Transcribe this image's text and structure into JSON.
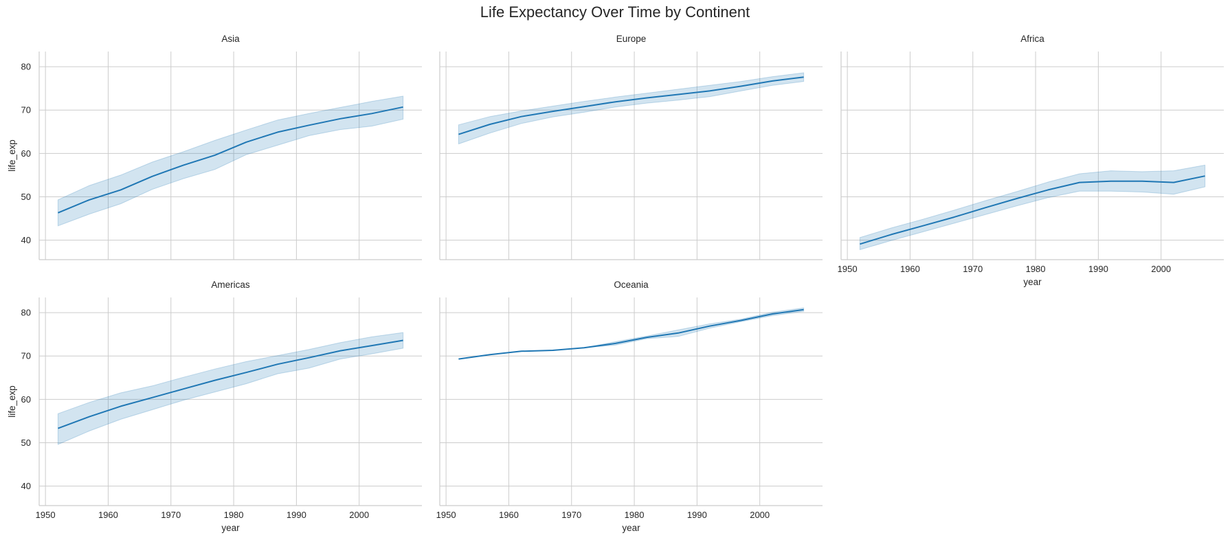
{
  "chart_data": {
    "type": "line",
    "title": "Life Expectancy Over Time by Continent",
    "x_label": "year",
    "y_label": "life_exp",
    "xlim": [
      1949,
      2010
    ],
    "ylim": [
      35.5,
      83.5
    ],
    "x_ticks": [
      1950,
      1960,
      1970,
      1980,
      1990,
      2000
    ],
    "y_ticks": [
      40,
      50,
      60,
      70,
      80
    ],
    "grid": true,
    "line_color": "#1f77b4",
    "x": [
      1952,
      1957,
      1962,
      1967,
      1972,
      1977,
      1982,
      1987,
      1992,
      1997,
      2002,
      2007
    ],
    "panels": [
      {
        "title": "Asia",
        "mean": [
          46.3,
          49.3,
          51.6,
          54.7,
          57.3,
          59.6,
          62.6,
          64.9,
          66.5,
          68.0,
          69.2,
          70.7
        ],
        "lower": [
          43.3,
          46.0,
          48.4,
          51.7,
          54.2,
          56.3,
          59.7,
          61.9,
          64.1,
          65.5,
          66.3,
          67.9
        ],
        "upper": [
          49.3,
          52.6,
          55.0,
          58.0,
          60.4,
          63.0,
          65.4,
          67.7,
          69.2,
          70.6,
          72.0,
          73.2
        ]
      },
      {
        "title": "Europe",
        "mean": [
          64.4,
          66.7,
          68.5,
          69.7,
          70.8,
          71.9,
          72.8,
          73.6,
          74.4,
          75.5,
          76.7,
          77.6
        ],
        "lower": [
          62.2,
          64.7,
          66.9,
          68.4,
          69.5,
          70.7,
          71.6,
          72.3,
          73.1,
          74.4,
          75.7,
          76.6
        ],
        "upper": [
          66.6,
          68.5,
          69.8,
          70.9,
          72.0,
          73.0,
          73.9,
          74.8,
          75.7,
          76.6,
          77.7,
          78.6
        ]
      },
      {
        "title": "Africa",
        "mean": [
          39.1,
          41.3,
          43.3,
          45.3,
          47.5,
          49.6,
          51.6,
          53.3,
          53.6,
          53.6,
          53.3,
          54.8
        ],
        "lower": [
          37.8,
          39.9,
          41.9,
          43.9,
          45.9,
          47.9,
          49.8,
          51.3,
          51.3,
          51.1,
          50.6,
          52.3
        ],
        "upper": [
          40.6,
          42.8,
          44.8,
          46.9,
          49.1,
          51.2,
          53.4,
          55.3,
          56.0,
          55.8,
          56.0,
          57.3
        ]
      },
      {
        "title": "Americas",
        "mean": [
          53.3,
          56.0,
          58.4,
          60.4,
          62.4,
          64.4,
          66.2,
          68.1,
          69.6,
          71.2,
          72.4,
          73.6
        ],
        "lower": [
          49.6,
          52.7,
          55.4,
          57.6,
          59.8,
          61.7,
          63.6,
          65.9,
          67.2,
          69.3,
          70.5,
          71.8
        ],
        "upper": [
          56.7,
          59.3,
          61.5,
          63.1,
          65.1,
          67.0,
          68.7,
          70.1,
          71.5,
          73.1,
          74.4,
          75.4
        ]
      },
      {
        "title": "Oceania",
        "mean": [
          69.3,
          70.3,
          71.1,
          71.3,
          71.9,
          72.9,
          74.3,
          75.3,
          76.9,
          78.2,
          79.7,
          80.7
        ],
        "lower": [
          69.3,
          70.3,
          71.1,
          71.3,
          71.9,
          72.5,
          74.0,
          74.5,
          76.4,
          77.9,
          79.3,
          80.3
        ],
        "upper": [
          69.3,
          70.3,
          71.1,
          71.3,
          71.9,
          73.3,
          74.6,
          76.0,
          77.4,
          78.5,
          80.1,
          81.1
        ]
      }
    ]
  }
}
